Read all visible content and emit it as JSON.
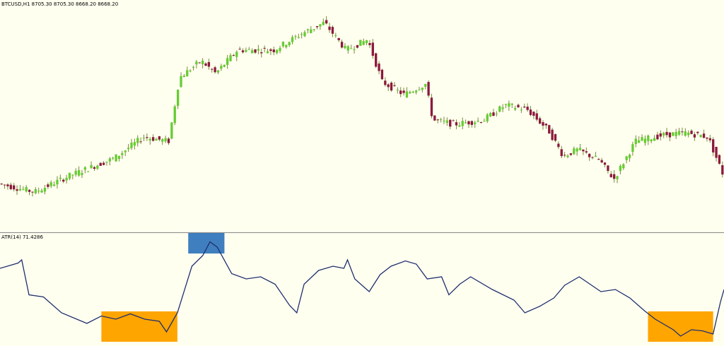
{
  "window": {
    "symbol_header": "BTCUSD,H1 8705.30 8705.30 8668.20 8668.20",
    "indicator_header": "ATR(14) 71.4286"
  },
  "colors": {
    "background": "#fffff0",
    "bull": "#66cc33",
    "bear": "#8b1a3c",
    "wick": "#7a8a3a",
    "atr_line": "#1f2f6e",
    "separator": "#888888",
    "highlight_high": "#3f7fbf",
    "highlight_low": "#ffa500"
  },
  "chart_data": [
    {
      "type": "candlestick",
      "symbol": "BTCUSD",
      "timeframe": "H1",
      "header_values": {
        "open": 8705.3,
        "high": 8705.3,
        "low": 8668.2,
        "close": 8668.2
      },
      "x_label_visible": false,
      "y_label_visible": false,
      "price_trend": [
        [
          0,
          0.2
        ],
        [
          0.05,
          0.16
        ],
        [
          0.1,
          0.24
        ],
        [
          0.16,
          0.32
        ],
        [
          0.2,
          0.42
        ],
        [
          0.235,
          0.4
        ],
        [
          0.25,
          0.7
        ],
        [
          0.28,
          0.78
        ],
        [
          0.3,
          0.72
        ],
        [
          0.33,
          0.83
        ],
        [
          0.38,
          0.83
        ],
        [
          0.42,
          0.91
        ],
        [
          0.45,
          0.96
        ],
        [
          0.48,
          0.83
        ],
        [
          0.51,
          0.88
        ],
        [
          0.53,
          0.68
        ],
        [
          0.56,
          0.62
        ],
        [
          0.59,
          0.67
        ],
        [
          0.6,
          0.5
        ],
        [
          0.63,
          0.48
        ],
        [
          0.67,
          0.5
        ],
        [
          0.7,
          0.57
        ],
        [
          0.73,
          0.55
        ],
        [
          0.76,
          0.45
        ],
        [
          0.78,
          0.33
        ],
        [
          0.8,
          0.36
        ],
        [
          0.83,
          0.31
        ],
        [
          0.85,
          0.22
        ],
        [
          0.88,
          0.4
        ],
        [
          0.92,
          0.43
        ],
        [
          0.95,
          0.44
        ],
        [
          0.98,
          0.42
        ],
        [
          1.0,
          0.25
        ]
      ]
    },
    {
      "type": "line",
      "name": "ATR(14) 71.4286",
      "period": 14,
      "last_value": 71.4286,
      "values": [
        [
          0,
          0.7
        ],
        [
          0.025,
          0.75
        ],
        [
          0.03,
          0.78
        ],
        [
          0.04,
          0.45
        ],
        [
          0.06,
          0.43
        ],
        [
          0.085,
          0.28
        ],
        [
          0.12,
          0.18
        ],
        [
          0.14,
          0.25
        ],
        [
          0.16,
          0.22
        ],
        [
          0.18,
          0.27
        ],
        [
          0.2,
          0.22
        ],
        [
          0.22,
          0.2
        ],
        [
          0.23,
          0.1
        ],
        [
          0.245,
          0.28
        ],
        [
          0.265,
          0.72
        ],
        [
          0.28,
          0.82
        ],
        [
          0.29,
          0.95
        ],
        [
          0.3,
          0.9
        ],
        [
          0.32,
          0.65
        ],
        [
          0.34,
          0.6
        ],
        [
          0.36,
          0.62
        ],
        [
          0.38,
          0.55
        ],
        [
          0.4,
          0.35
        ],
        [
          0.41,
          0.28
        ],
        [
          0.42,
          0.55
        ],
        [
          0.44,
          0.68
        ],
        [
          0.46,
          0.72
        ],
        [
          0.475,
          0.7
        ],
        [
          0.48,
          0.78
        ],
        [
          0.49,
          0.6
        ],
        [
          0.51,
          0.48
        ],
        [
          0.525,
          0.64
        ],
        [
          0.54,
          0.72
        ],
        [
          0.56,
          0.77
        ],
        [
          0.575,
          0.74
        ],
        [
          0.59,
          0.6
        ],
        [
          0.61,
          0.62
        ],
        [
          0.62,
          0.45
        ],
        [
          0.635,
          0.55
        ],
        [
          0.65,
          0.62
        ],
        [
          0.68,
          0.5
        ],
        [
          0.71,
          0.4
        ],
        [
          0.725,
          0.28
        ],
        [
          0.745,
          0.34
        ],
        [
          0.765,
          0.42
        ],
        [
          0.78,
          0.54
        ],
        [
          0.8,
          0.62
        ],
        [
          0.815,
          0.55
        ],
        [
          0.83,
          0.48
        ],
        [
          0.85,
          0.5
        ],
        [
          0.87,
          0.42
        ],
        [
          0.89,
          0.3
        ],
        [
          0.905,
          0.22
        ],
        [
          0.93,
          0.12
        ],
        [
          0.94,
          0.06
        ],
        [
          0.955,
          0.12
        ],
        [
          0.97,
          0.11
        ],
        [
          0.985,
          0.08
        ],
        [
          0.995,
          0.38
        ],
        [
          1.0,
          0.5
        ]
      ],
      "highlights": [
        {
          "label": "high",
          "color": "#3f7fbf",
          "x_range": [
            0.26,
            0.31
          ]
        },
        {
          "label": "low",
          "color": "#ffa500",
          "x_range": [
            0.14,
            0.245
          ]
        },
        {
          "label": "low",
          "color": "#ffa500",
          "x_range": [
            0.895,
            0.985
          ]
        }
      ]
    }
  ]
}
